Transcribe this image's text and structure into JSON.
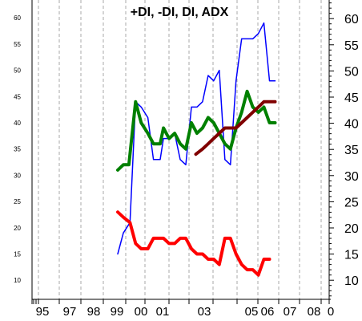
{
  "chart_data": {
    "type": "line",
    "title": "+DI, -DI, DI, ADX",
    "xlabel": "",
    "ylabel": "",
    "ylim": [
      5,
      65
    ],
    "grid": "vertical dashed",
    "x_ticks": [
      "95",
      "97",
      "98",
      "99",
      "00",
      "01",
      "03",
      "05",
      "06",
      "07",
      "08",
      "0"
    ],
    "y_ticks_left": [
      "10",
      "15",
      "20",
      "25",
      "30",
      "35",
      "40",
      "45",
      "50",
      "55",
      "60"
    ],
    "y_ticks_right": [
      "10",
      "15",
      "20",
      "25",
      "30",
      "35",
      "40",
      "45",
      "50",
      "55",
      "60"
    ],
    "series": [
      {
        "color": "#0000ff",
        "width": 1.5,
        "x": [
          1999.0,
          1999.25,
          1999.55,
          1999.8,
          2000.05,
          2000.35,
          2000.6,
          2000.9,
          2001.05,
          2001.3,
          2001.55,
          2001.8,
          2002.05,
          2002.3,
          2002.55,
          2002.8,
          2003.05,
          2003.3,
          2003.55,
          2003.8,
          2004.05,
          2004.3,
          2004.55,
          2004.8,
          2005.05,
          2005.3,
          2005.55,
          2005.8,
          2006.05
        ],
        "values": [
          15,
          19,
          21,
          44,
          43,
          41,
          33,
          33,
          37,
          37,
          38,
          33,
          32,
          43,
          43,
          44,
          49,
          48,
          50,
          33,
          32,
          48,
          56,
          56,
          56,
          57,
          59,
          48,
          48
        ]
      },
      {
        "color": "#008000",
        "width": 4,
        "x": [
          1999.0,
          1999.25,
          1999.5,
          1999.8,
          2000.05,
          2000.35,
          2000.6,
          2000.9,
          2001.05,
          2001.3,
          2001.55,
          2001.8,
          2002.05,
          2002.3,
          2002.55,
          2002.8,
          2003.05,
          2003.3,
          2003.55,
          2003.8,
          2004.05,
          2004.3,
          2004.55,
          2004.8,
          2005.05,
          2005.3,
          2005.55,
          2005.8,
          2006.05
        ],
        "values": [
          31,
          32,
          32,
          44,
          40,
          38,
          36,
          36,
          39,
          37,
          38,
          36,
          35,
          40,
          38,
          39,
          41,
          40,
          38,
          36,
          35,
          39,
          42,
          46,
          43,
          42,
          43,
          40,
          40
        ]
      },
      {
        "color": "#ff0000",
        "width": 4,
        "x": [
          1999.0,
          1999.25,
          1999.55,
          1999.8,
          2000.05,
          2000.35,
          2000.6,
          2000.9,
          2001.05,
          2001.3,
          2001.55,
          2001.8,
          2002.05,
          2002.3,
          2002.55,
          2002.8,
          2003.05,
          2003.3,
          2003.55,
          2003.8,
          2004.05,
          2004.3,
          2004.55,
          2004.8,
          2005.05,
          2005.3,
          2005.55,
          2005.8
        ],
        "values": [
          23,
          22,
          21,
          17,
          16,
          16,
          18,
          18,
          18,
          17,
          17,
          18,
          18,
          16,
          15,
          15,
          14,
          14,
          13,
          18,
          18,
          15,
          13,
          12,
          12,
          11,
          14,
          14
        ]
      },
      {
        "color": "#800000",
        "width": 4,
        "x": [
          2002.5,
          2002.8,
          2003.05,
          2003.3,
          2003.55,
          2003.8,
          2004.05,
          2004.3,
          2004.55,
          2004.8,
          2005.05,
          2005.3,
          2005.55,
          2005.8,
          2006.05
        ],
        "values": [
          34,
          35,
          36,
          37,
          38,
          39,
          39,
          39,
          40,
          41,
          42,
          43,
          44,
          44,
          44
        ]
      }
    ]
  }
}
